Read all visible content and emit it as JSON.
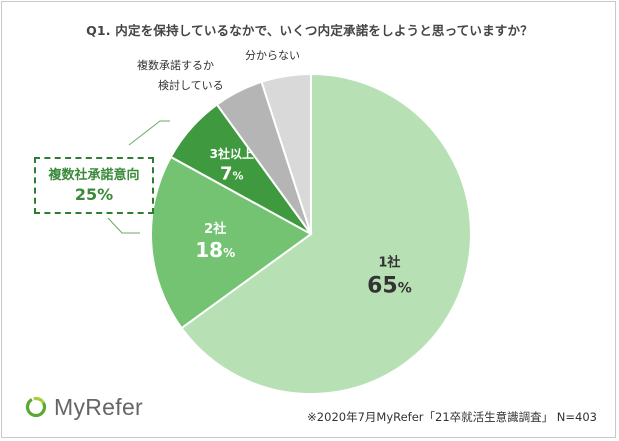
{
  "title": "Q1. 内定を保持しているなかで、いくつ内定承諾をしようと思っていますか？",
  "chart_data": {
    "type": "pie",
    "slices": [
      {
        "label": "1社",
        "value": 65,
        "color": "#b7e1b5"
      },
      {
        "label": "2社",
        "value": 18,
        "color": "#73c373"
      },
      {
        "label": "3社以上",
        "value": 7,
        "color": "#3f9a3f"
      },
      {
        "label": "複数承諾するか検討している",
        "value": 5,
        "color": "#b5b5b5"
      },
      {
        "label": "分からない",
        "value": 5,
        "color": "#d9d9d9"
      }
    ],
    "value_labels": [
      "65",
      "18",
      "7"
    ],
    "percent_sign": "%"
  },
  "outside_labels": {
    "considering_line1": "複数承諾するか",
    "considering_line2": "検討している",
    "unknown": "分からない"
  },
  "callout": {
    "name": "複数社承諾意向",
    "value": "25%"
  },
  "logo": {
    "text": "MyRefer",
    "icon": "myrefer-ring-logo-icon"
  },
  "footnote": "※2020年7月MyRefer「21卒就活生意識調査」 N=403"
}
